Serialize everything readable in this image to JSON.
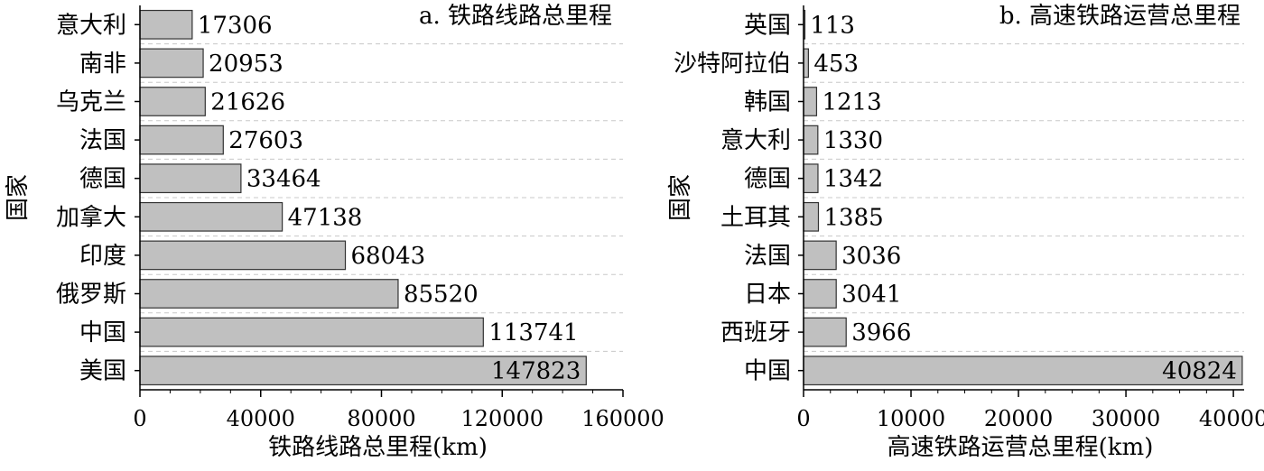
{
  "chart_data": [
    {
      "type": "bar",
      "orientation": "horizontal",
      "title": "a. 铁路线路总里程",
      "xlabel": "铁路线路总里程(km)",
      "ylabel": "国家",
      "categories": [
        "意大利",
        "南非",
        "乌克兰",
        "法国",
        "德国",
        "加拿大",
        "印度",
        "俄罗斯",
        "中国",
        "美国"
      ],
      "values": [
        17306,
        20953,
        21626,
        27603,
        33464,
        47138,
        68043,
        85520,
        113741,
        147823
      ],
      "value_labels": [
        "17306",
        "20953",
        "21626",
        "27603",
        "33464",
        "47138",
        "68043",
        "85520",
        "113741",
        "147823"
      ],
      "xlim": [
        0,
        160000
      ],
      "xticks": [
        0,
        40000,
        80000,
        120000,
        160000
      ],
      "xtick_labels": [
        "0",
        "40000",
        "80000",
        "120000",
        "160000"
      ],
      "grid": "horizontal-dashed",
      "bar_color": "#c0c0c0"
    },
    {
      "type": "bar",
      "orientation": "horizontal",
      "title": "b. 高速铁路运营总里程",
      "xlabel": "高速铁路运营总里程(km)",
      "ylabel": "国家",
      "categories": [
        "英国",
        "沙特阿拉伯",
        "韩国",
        "意大利",
        "德国",
        "土耳其",
        "法国",
        "日本",
        "西班牙",
        "中国"
      ],
      "values": [
        113,
        453,
        1213,
        1330,
        1342,
        1385,
        3036,
        3041,
        3966,
        40824
      ],
      "value_labels": [
        "113",
        "453",
        "1213",
        "1330",
        "1342",
        "1385",
        "3036",
        "3041",
        "3966",
        "40824"
      ],
      "xlim": [
        0,
        41000
      ],
      "xticks": [
        0,
        10000,
        20000,
        30000,
        40000
      ],
      "xtick_labels": [
        "0",
        "10000",
        "20000",
        "30000",
        "40000"
      ],
      "grid": "horizontal-dashed",
      "bar_color": "#c0c0c0"
    }
  ]
}
